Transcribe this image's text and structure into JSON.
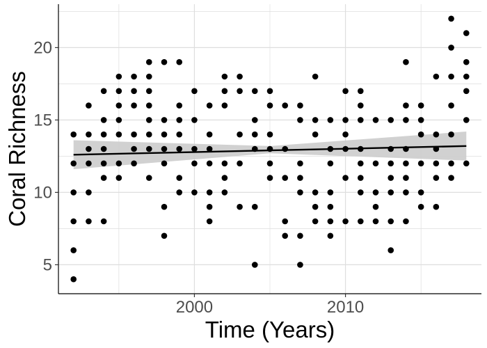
{
  "chart_data": {
    "type": "scatter",
    "xlabel": "Time (Years)",
    "ylabel": "Coral Richness",
    "xlim": [
      1991,
      2019
    ],
    "ylim": [
      3,
      23
    ],
    "x_ticks": [
      2000,
      2010
    ],
    "y_ticks": [
      5,
      10,
      15,
      20
    ],
    "grid": true,
    "legend": "none",
    "colors": {
      "points": "#000000",
      "fit_line": "#000000",
      "confidence_band": "#cccccc",
      "grid": "#dedede"
    },
    "points": [
      [
        1992,
        4
      ],
      [
        1992,
        6
      ],
      [
        1992,
        8
      ],
      [
        1992,
        10
      ],
      [
        1992,
        12
      ],
      [
        1992,
        14
      ],
      [
        1993,
        8
      ],
      [
        1993,
        10
      ],
      [
        1993,
        12
      ],
      [
        1993,
        13
      ],
      [
        1993,
        14
      ],
      [
        1993,
        16
      ],
      [
        1994,
        8
      ],
      [
        1994,
        11
      ],
      [
        1994,
        12
      ],
      [
        1994,
        13
      ],
      [
        1994,
        14
      ],
      [
        1994,
        15
      ],
      [
        1994,
        17
      ],
      [
        1995,
        11
      ],
      [
        1995,
        12
      ],
      [
        1995,
        14
      ],
      [
        1995,
        15
      ],
      [
        1995,
        16
      ],
      [
        1995,
        17
      ],
      [
        1995,
        18
      ],
      [
        1996,
        12
      ],
      [
        1996,
        13
      ],
      [
        1996,
        14
      ],
      [
        1996,
        16
      ],
      [
        1996,
        17
      ],
      [
        1996,
        18
      ],
      [
        1997,
        11
      ],
      [
        1997,
        13
      ],
      [
        1997,
        14
      ],
      [
        1997,
        15
      ],
      [
        1997,
        16
      ],
      [
        1997,
        17
      ],
      [
        1997,
        18
      ],
      [
        1997,
        19
      ],
      [
        1998,
        7
      ],
      [
        1998,
        9
      ],
      [
        1998,
        12
      ],
      [
        1998,
        13
      ],
      [
        1998,
        14
      ],
      [
        1998,
        15
      ],
      [
        1998,
        19
      ],
      [
        1999,
        10
      ],
      [
        1999,
        11
      ],
      [
        1999,
        13
      ],
      [
        1999,
        14
      ],
      [
        1999,
        15
      ],
      [
        1999,
        16
      ],
      [
        1999,
        19
      ],
      [
        2000,
        10
      ],
      [
        2000,
        12
      ],
      [
        2000,
        13
      ],
      [
        2000,
        15
      ],
      [
        2000,
        17
      ],
      [
        2001,
        8
      ],
      [
        2001,
        9
      ],
      [
        2001,
        10
      ],
      [
        2001,
        12
      ],
      [
        2001,
        13
      ],
      [
        2001,
        14
      ],
      [
        2001,
        16
      ],
      [
        2002,
        10
      ],
      [
        2002,
        11
      ],
      [
        2002,
        12
      ],
      [
        2002,
        16
      ],
      [
        2002,
        17
      ],
      [
        2002,
        18
      ],
      [
        2003,
        9
      ],
      [
        2003,
        12
      ],
      [
        2003,
        14
      ],
      [
        2003,
        17
      ],
      [
        2003,
        18
      ],
      [
        2004,
        5
      ],
      [
        2004,
        9
      ],
      [
        2004,
        13
      ],
      [
        2004,
        14
      ],
      [
        2004,
        15
      ],
      [
        2004,
        17
      ],
      [
        2005,
        11
      ],
      [
        2005,
        12
      ],
      [
        2005,
        13
      ],
      [
        2005,
        14
      ],
      [
        2005,
        16
      ],
      [
        2005,
        17
      ],
      [
        2006,
        7
      ],
      [
        2006,
        8
      ],
      [
        2006,
        11
      ],
      [
        2006,
        13
      ],
      [
        2006,
        16
      ],
      [
        2007,
        5
      ],
      [
        2007,
        7
      ],
      [
        2007,
        10
      ],
      [
        2007,
        11
      ],
      [
        2007,
        12
      ],
      [
        2007,
        15
      ],
      [
        2007,
        16
      ],
      [
        2008,
        8
      ],
      [
        2008,
        9
      ],
      [
        2008,
        10
      ],
      [
        2008,
        14
      ],
      [
        2008,
        15
      ],
      [
        2008,
        18
      ],
      [
        2009,
        7
      ],
      [
        2009,
        8
      ],
      [
        2009,
        9
      ],
      [
        2009,
        10
      ],
      [
        2009,
        12
      ],
      [
        2009,
        13
      ],
      [
        2009,
        15
      ],
      [
        2010,
        8
      ],
      [
        2010,
        11
      ],
      [
        2010,
        13
      ],
      [
        2010,
        14
      ],
      [
        2010,
        15
      ],
      [
        2010,
        17
      ],
      [
        2011,
        8
      ],
      [
        2011,
        10
      ],
      [
        2011,
        11
      ],
      [
        2011,
        12
      ],
      [
        2011,
        13
      ],
      [
        2011,
        15
      ],
      [
        2011,
        16
      ],
      [
        2011,
        17
      ],
      [
        2012,
        8
      ],
      [
        2012,
        9
      ],
      [
        2012,
        10
      ],
      [
        2012,
        12
      ],
      [
        2012,
        15
      ],
      [
        2013,
        6
      ],
      [
        2013,
        8
      ],
      [
        2013,
        10
      ],
      [
        2013,
        11
      ],
      [
        2013,
        12
      ],
      [
        2013,
        13
      ],
      [
        2013,
        15
      ],
      [
        2014,
        8
      ],
      [
        2014,
        10
      ],
      [
        2014,
        11
      ],
      [
        2014,
        12
      ],
      [
        2014,
        13
      ],
      [
        2014,
        15
      ],
      [
        2014,
        16
      ],
      [
        2014,
        19
      ],
      [
        2015,
        9
      ],
      [
        2015,
        10
      ],
      [
        2015,
        12
      ],
      [
        2015,
        14
      ],
      [
        2015,
        15
      ],
      [
        2015,
        16
      ],
      [
        2016,
        9
      ],
      [
        2016,
        11
      ],
      [
        2016,
        12
      ],
      [
        2016,
        13
      ],
      [
        2016,
        14
      ],
      [
        2016,
        18
      ],
      [
        2017,
        11
      ],
      [
        2017,
        12
      ],
      [
        2017,
        14
      ],
      [
        2017,
        16
      ],
      [
        2017,
        18
      ],
      [
        2017,
        20
      ],
      [
        2017,
        22
      ],
      [
        2018,
        12
      ],
      [
        2018,
        15
      ],
      [
        2018,
        17
      ],
      [
        2018,
        18
      ],
      [
        2018,
        19
      ],
      [
        2018,
        21
      ]
    ],
    "trend_line": {
      "x": [
        1992,
        2018
      ],
      "y": [
        12.6,
        13.2
      ]
    },
    "confidence_band": {
      "x": [
        1992,
        2005,
        2018
      ],
      "lower": [
        11.6,
        12.7,
        12.2
      ],
      "upper": [
        13.6,
        13.2,
        14.2
      ]
    }
  }
}
